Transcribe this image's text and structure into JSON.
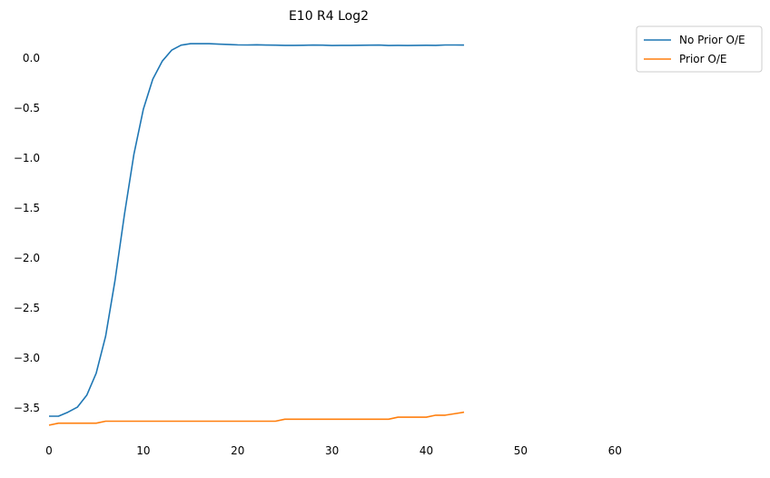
{
  "chart_data": {
    "type": "line",
    "title": "E10 R4 Log2",
    "xlabel": "",
    "ylabel": "",
    "xlim": [
      0,
      64.5
    ],
    "ylim": [
      -3.78,
      0.3
    ],
    "xticks": [
      0,
      10,
      20,
      30,
      40,
      50,
      60
    ],
    "yticks": [
      0.0,
      -0.5,
      -1.0,
      -1.5,
      -2.0,
      -2.5,
      -3.0,
      -3.5
    ],
    "ytick_labels": [
      "0.0",
      "−0.5",
      "−1.0",
      "−1.5",
      "−2.0",
      "−2.5",
      "−3.0",
      "−3.5"
    ],
    "xtick_labels": [
      "0",
      "10",
      "20",
      "30",
      "40",
      "50",
      "60"
    ],
    "grid": false,
    "legend_position": "outside top-right",
    "x": [
      0,
      1,
      2,
      3,
      4,
      5,
      6,
      7,
      8,
      9,
      10,
      11,
      12,
      13,
      14,
      15,
      16,
      17,
      18,
      19,
      20,
      21,
      22,
      23,
      24,
      25,
      26,
      27,
      28,
      29,
      30,
      31,
      32,
      33,
      34,
      35,
      36,
      37,
      38,
      39,
      40,
      41,
      42,
      43,
      44
    ],
    "series": [
      {
        "name": "No Prior O/E",
        "color": "#1f77b4",
        "values": [
          -3.58,
          -3.58,
          -3.54,
          -3.49,
          -3.37,
          -3.15,
          -2.78,
          -2.22,
          -1.56,
          -0.96,
          -0.51,
          -0.21,
          -0.03,
          0.08,
          0.13,
          0.145,
          0.145,
          0.145,
          0.14,
          0.137,
          0.133,
          0.132,
          0.134,
          0.131,
          0.13,
          0.128,
          0.128,
          0.129,
          0.131,
          0.13,
          0.127,
          0.128,
          0.128,
          0.129,
          0.13,
          0.131,
          0.127,
          0.128,
          0.127,
          0.128,
          0.129,
          0.128,
          0.132,
          0.132,
          0.131
        ]
      },
      {
        "name": "Prior O/E",
        "color": "#ff7f0e",
        "values": [
          -3.67,
          -3.65,
          -3.65,
          -3.65,
          -3.65,
          -3.65,
          -3.63,
          -3.63,
          -3.63,
          -3.63,
          -3.63,
          -3.63,
          -3.63,
          -3.63,
          -3.63,
          -3.63,
          -3.63,
          -3.63,
          -3.63,
          -3.63,
          -3.63,
          -3.63,
          -3.63,
          -3.63,
          -3.63,
          -3.61,
          -3.61,
          -3.61,
          -3.61,
          -3.61,
          -3.61,
          -3.61,
          -3.61,
          -3.61,
          -3.61,
          -3.61,
          -3.61,
          -3.59,
          -3.59,
          -3.59,
          -3.59,
          -3.57,
          -3.57,
          -3.555,
          -3.54
        ]
      }
    ]
  }
}
